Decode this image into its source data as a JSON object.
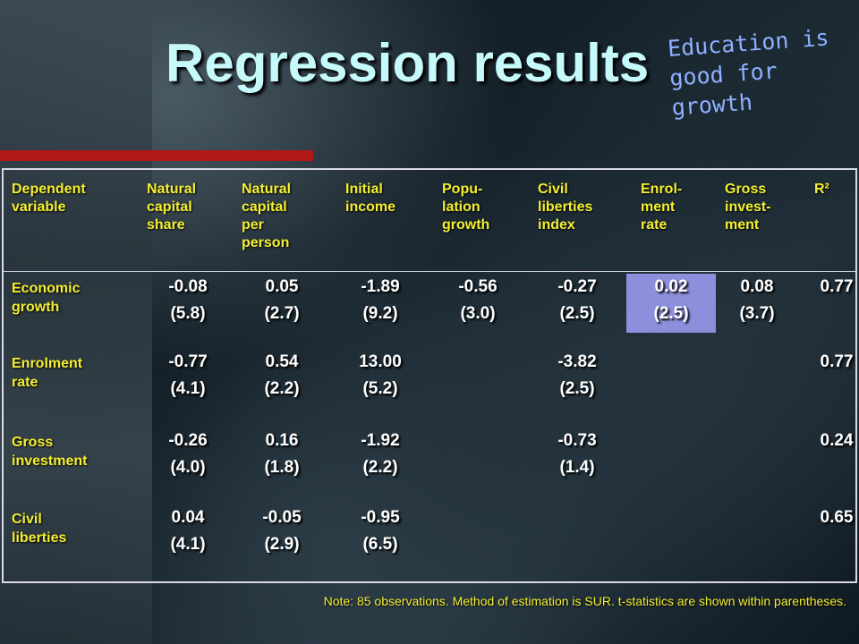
{
  "slide": {
    "title": "Regression results",
    "annotation": "Education is good for growth",
    "note": "Note: 85 observations. Method of estimation is SUR. t-statistics are shown within parentheses."
  },
  "table": {
    "headers": [
      [
        "Dependent",
        "variable"
      ],
      [
        "Natural",
        "capital",
        "share"
      ],
      [
        "Natural",
        "capital",
        "per",
        "person"
      ],
      [
        "Initial",
        "income"
      ],
      [
        "Popu-",
        "lation",
        "growth"
      ],
      [
        "Civil",
        "liberties",
        "index"
      ],
      [
        "Enrol-",
        "ment",
        "rate"
      ],
      [
        "Gross",
        "invest-",
        "ment"
      ],
      [
        "R²"
      ]
    ],
    "rows": [
      {
        "label": [
          "Economic",
          "growth"
        ],
        "cells": [
          [
            "-0.08",
            "(5.8)"
          ],
          [
            "0.05",
            "(2.7)"
          ],
          [
            "-1.89",
            "(9.2)"
          ],
          [
            "-0.56",
            "(3.0)"
          ],
          [
            "-0.27",
            "(2.5)"
          ],
          [
            "0.02",
            "(2.5)"
          ],
          [
            "0.08",
            "(3.7)"
          ],
          [
            "0.77",
            ""
          ]
        ]
      },
      {
        "label": [
          "Enrolment",
          "rate"
        ],
        "cells": [
          [
            "-0.77",
            "(4.1)"
          ],
          [
            "0.54",
            "(2.2)"
          ],
          [
            "13.00",
            "(5.2)"
          ],
          [
            "",
            ""
          ],
          [
            "-3.82",
            "(2.5)"
          ],
          [
            "",
            ""
          ],
          [
            "",
            ""
          ],
          [
            "0.77",
            ""
          ]
        ]
      },
      {
        "label": [
          "Gross",
          "investment"
        ],
        "cells": [
          [
            "-0.26",
            "(4.0)"
          ],
          [
            "0.16",
            "(1.8)"
          ],
          [
            "-1.92",
            "(2.2)"
          ],
          [
            "",
            ""
          ],
          [
            "-0.73",
            "(1.4)"
          ],
          [
            "",
            ""
          ],
          [
            "",
            ""
          ],
          [
            "0.24",
            ""
          ]
        ]
      },
      {
        "label": [
          "Civil",
          "liberties"
        ],
        "cells": [
          [
            "0.04",
            "(4.1)"
          ],
          [
            "-0.05",
            "(2.9)"
          ],
          [
            "-0.95",
            "(6.5)"
          ],
          [
            "",
            ""
          ],
          [
            "",
            ""
          ],
          [
            "",
            ""
          ],
          [
            "",
            ""
          ],
          [
            "0.65",
            ""
          ]
        ]
      }
    ]
  },
  "colors": {
    "title": "#c6fafa",
    "header_text": "#f4ef30",
    "highlight": "#8d8fdc",
    "accent_bar": "#b01818",
    "annotation": "#8fb0ff"
  }
}
